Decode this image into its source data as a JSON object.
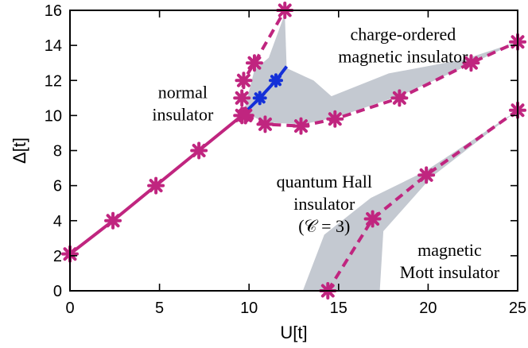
{
  "chart_data": {
    "type": "line",
    "title": "",
    "xlabel": "U[t]",
    "ylabel": "Δ[t]",
    "xlim": [
      0,
      25
    ],
    "ylim": [
      0,
      16
    ],
    "xticks": [
      0,
      5,
      10,
      15,
      20,
      25
    ],
    "yticks": [
      0,
      2,
      4,
      6,
      8,
      10,
      12,
      14,
      16
    ],
    "grid": false,
    "colors": {
      "magenta": "#c0257f",
      "blue": "#1430d8",
      "shade": "#c4c9d1",
      "axis": "#000000"
    },
    "series": [
      {
        "name": "normal-insulator-boundary",
        "style": "solid",
        "color": "#c0257f",
        "x": [
          0,
          2.4,
          4.8,
          7.2,
          9.6,
          9.8
        ],
        "y": [
          2.1,
          4.0,
          6.0,
          8.0,
          10.0,
          10.0
        ]
      },
      {
        "name": "charge-ordered-boundary",
        "style": "solid",
        "color": "#1430d8",
        "x": [
          9.8,
          10.6,
          11.5,
          12.1
        ],
        "y": [
          10.2,
          11.0,
          12.0,
          12.8
        ],
        "markers": [
          1,
          2
        ]
      },
      {
        "name": "upper-left-boundary",
        "style": "dashed",
        "color": "#c0257f",
        "x": [
          9.8,
          9.6,
          9.7,
          10.3,
          12.0
        ],
        "y": [
          10.0,
          11.0,
          12.0,
          13.0,
          16.0
        ]
      },
      {
        "name": "lower-boundary",
        "style": "dashed",
        "color": "#c0257f",
        "x": [
          9.8,
          10.9,
          12.9,
          14.8,
          18.4,
          22.4,
          25.0
        ],
        "y": [
          10.0,
          9.5,
          9.4,
          9.8,
          11.0,
          13.0,
          14.2
        ]
      },
      {
        "name": "mott-boundary",
        "style": "dashed",
        "color": "#c0257f",
        "x": [
          14.4,
          16.9,
          19.9,
          25.0
        ],
        "y": [
          0.0,
          4.1,
          6.6,
          10.3
        ]
      }
    ],
    "shaded_regions": [
      {
        "name": "charge-ordered-uncertainty",
        "points": [
          [
            9.7,
            10.2
          ],
          [
            10.3,
            12.6
          ],
          [
            11.1,
            13.3
          ],
          [
            12.0,
            15.8
          ],
          [
            12.1,
            12.7
          ],
          [
            13.6,
            12.0
          ],
          [
            14.6,
            11.1
          ],
          [
            17.8,
            12.4
          ],
          [
            22.0,
            13.2
          ],
          [
            25.0,
            14.2
          ],
          [
            22.1,
            12.8
          ],
          [
            18.6,
            11.2
          ],
          [
            14.9,
            9.9
          ],
          [
            13.0,
            9.5
          ],
          [
            10.9,
            9.6
          ]
        ]
      },
      {
        "name": "mott-uncertainty",
        "points": [
          [
            13.0,
            0.0
          ],
          [
            14.2,
            3.2
          ],
          [
            16.8,
            5.3
          ],
          [
            19.8,
            6.8
          ],
          [
            25.0,
            10.3
          ],
          [
            20.2,
            6.5
          ],
          [
            17.5,
            3.4
          ],
          [
            17.3,
            0.0
          ]
        ]
      }
    ],
    "annotations": [
      {
        "name": "normal-insulator-label",
        "lines": [
          "normal",
          "insulator"
        ],
        "x": 6.3,
        "y": 11.0,
        "anchor": "middle"
      },
      {
        "name": "charge-ordered-label",
        "lines": [
          "charge-ordered",
          "magnetic insulator"
        ],
        "x": 18.6,
        "y": 14.3,
        "anchor": "middle"
      },
      {
        "name": "quantum-hall-label",
        "lines": [
          "quantum Hall",
          "insulator",
          "(𝒞 = 3)"
        ],
        "x": 14.2,
        "y": 5.9,
        "anchor": "middle"
      },
      {
        "name": "mott-label",
        "lines": [
          "magnetic",
          "Mott insulator"
        ],
        "x": 21.2,
        "y": 2.0,
        "anchor": "middle"
      }
    ]
  }
}
